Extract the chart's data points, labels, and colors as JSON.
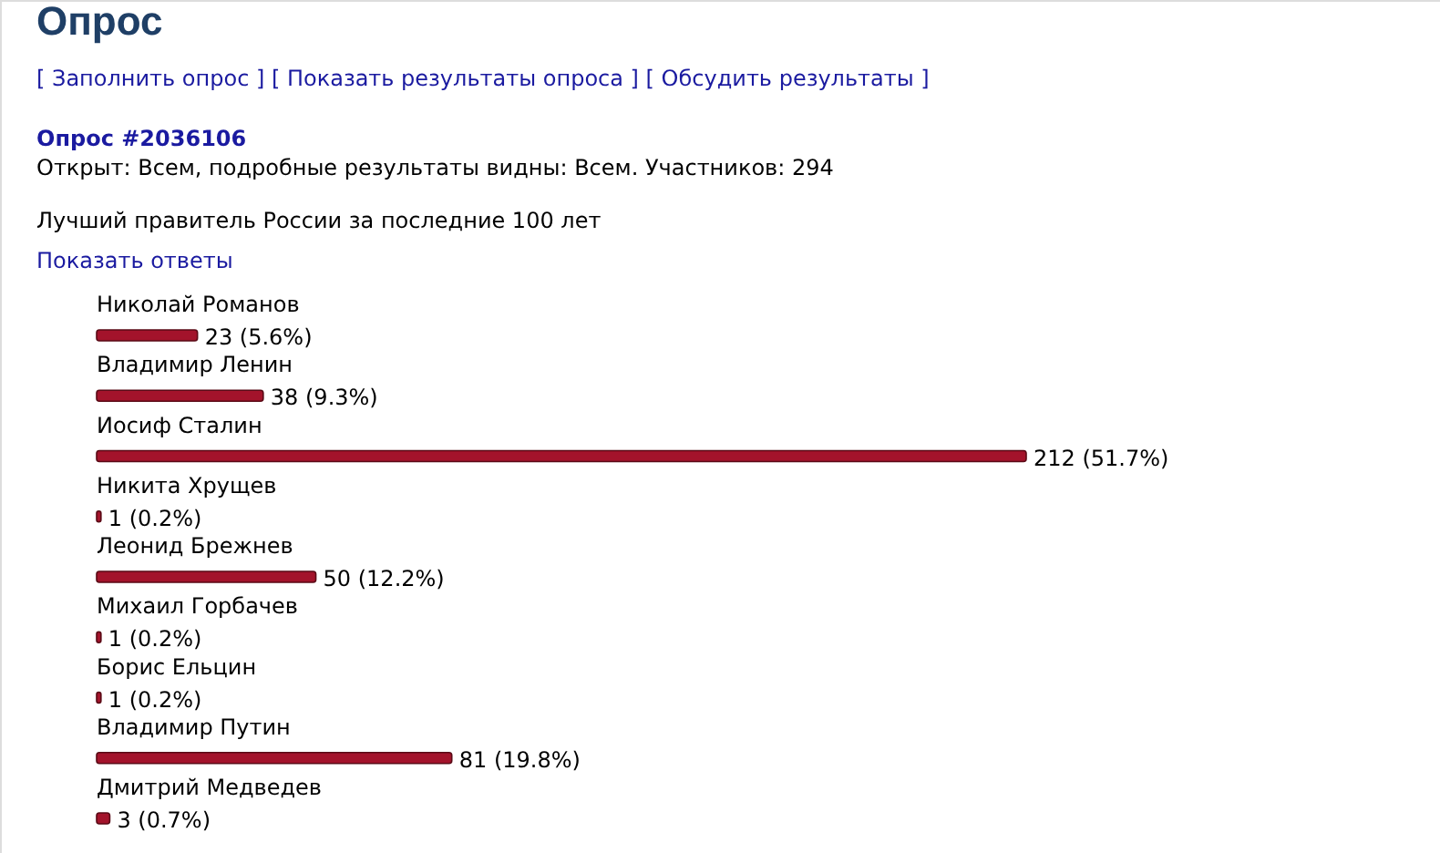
{
  "chart_data": {
    "type": "bar",
    "orientation": "horizontal",
    "title": "Опрос",
    "subtitle": "Лучший правитель России за последние 100 лет",
    "annotations": [
      "[ Заполнить опрос ]  [ Показать результаты опроса ]  [ Обсудить результаты ]",
      "Опрос #2036106",
      "Открыт: Всем, подробные результаты видны: Всем. Участников: 294",
      "Показать ответы"
    ],
    "categories": [
      "Николай Романов",
      "Владимир Ленин",
      "Иосиф Сталин",
      "Никита Хрущев",
      "Леонид Брежнев",
      "Михаил Горбачев",
      "Борис Ельцин",
      "Владимир Путин",
      "Дмитрий Медведев"
    ],
    "values": [
      23,
      38,
      212,
      1,
      50,
      1,
      1,
      81,
      3
    ],
    "value_labels": [
      "23 (5.6%)",
      "38 (9.3%)",
      "212 (51.7%)",
      "1 (0.2%)",
      "50 (12.2%)",
      "1 (0.2%)",
      "1 (0.2%)",
      "81 (19.8%)",
      "3 (0.7%)"
    ],
    "color": "#a3132b"
  }
}
